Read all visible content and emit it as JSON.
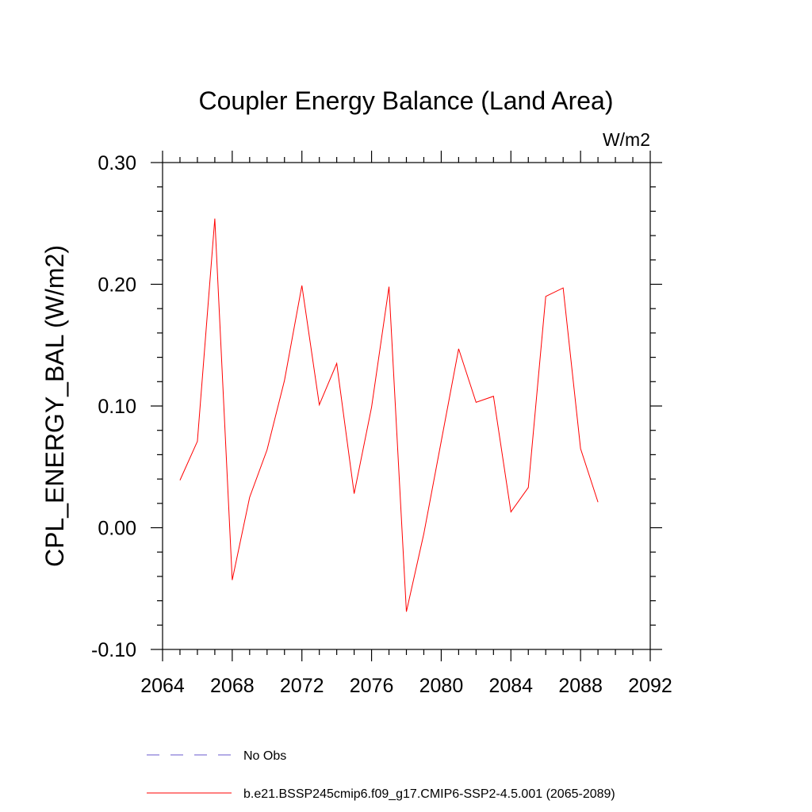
{
  "chart_data": {
    "type": "line",
    "title": "Coupler Energy Balance (Land Area)",
    "units_label": "W/m2",
    "ylabel": "CPL_ENERGY_BAL  (W/m2)",
    "xlabel": "",
    "xlim": [
      2064,
      2092
    ],
    "ylim": [
      -0.1,
      0.3
    ],
    "x_ticks": [
      2064,
      2068,
      2072,
      2076,
      2080,
      2084,
      2088,
      2092
    ],
    "x_tick_labels": [
      "2064",
      "2068",
      "2072",
      "2076",
      "2080",
      "2084",
      "2088",
      "2092"
    ],
    "y_ticks": [
      -0.1,
      0.0,
      0.1,
      0.2,
      0.3
    ],
    "y_tick_labels": [
      "-0.10",
      "0.00",
      "0.10",
      "0.20",
      "0.30"
    ],
    "grid": false,
    "legend_position": "bottom",
    "series": [
      {
        "name": "b.e21.BSSP245cmip6.f09_g17.CMIP6-SSP2-4.5.001 (2065-2089)",
        "color": "#ff0000",
        "style": "solid",
        "x": [
          2065,
          2066,
          2067,
          2068,
          2069,
          2070,
          2071,
          2072,
          2073,
          2074,
          2075,
          2076,
          2077,
          2078,
          2079,
          2080,
          2081,
          2082,
          2083,
          2084,
          2085,
          2086,
          2087,
          2088,
          2089
        ],
        "y": [
          0.039,
          0.071,
          0.254,
          -0.043,
          0.025,
          0.064,
          0.121,
          0.199,
          0.101,
          0.135,
          0.028,
          0.099,
          0.198,
          -0.069,
          -0.005,
          0.071,
          0.147,
          0.103,
          0.108,
          0.013,
          0.033,
          0.19,
          0.197,
          0.065,
          0.021
        ]
      }
    ],
    "legend": [
      {
        "label": "No Obs",
        "color": "#6a5acd",
        "style": "dashed"
      },
      {
        "label": "b.e21.BSSP245cmip6.f09_g17.CMIP6-SSP2-4.5.001 (2065-2089)",
        "color": "#ff0000",
        "style": "solid"
      }
    ]
  }
}
